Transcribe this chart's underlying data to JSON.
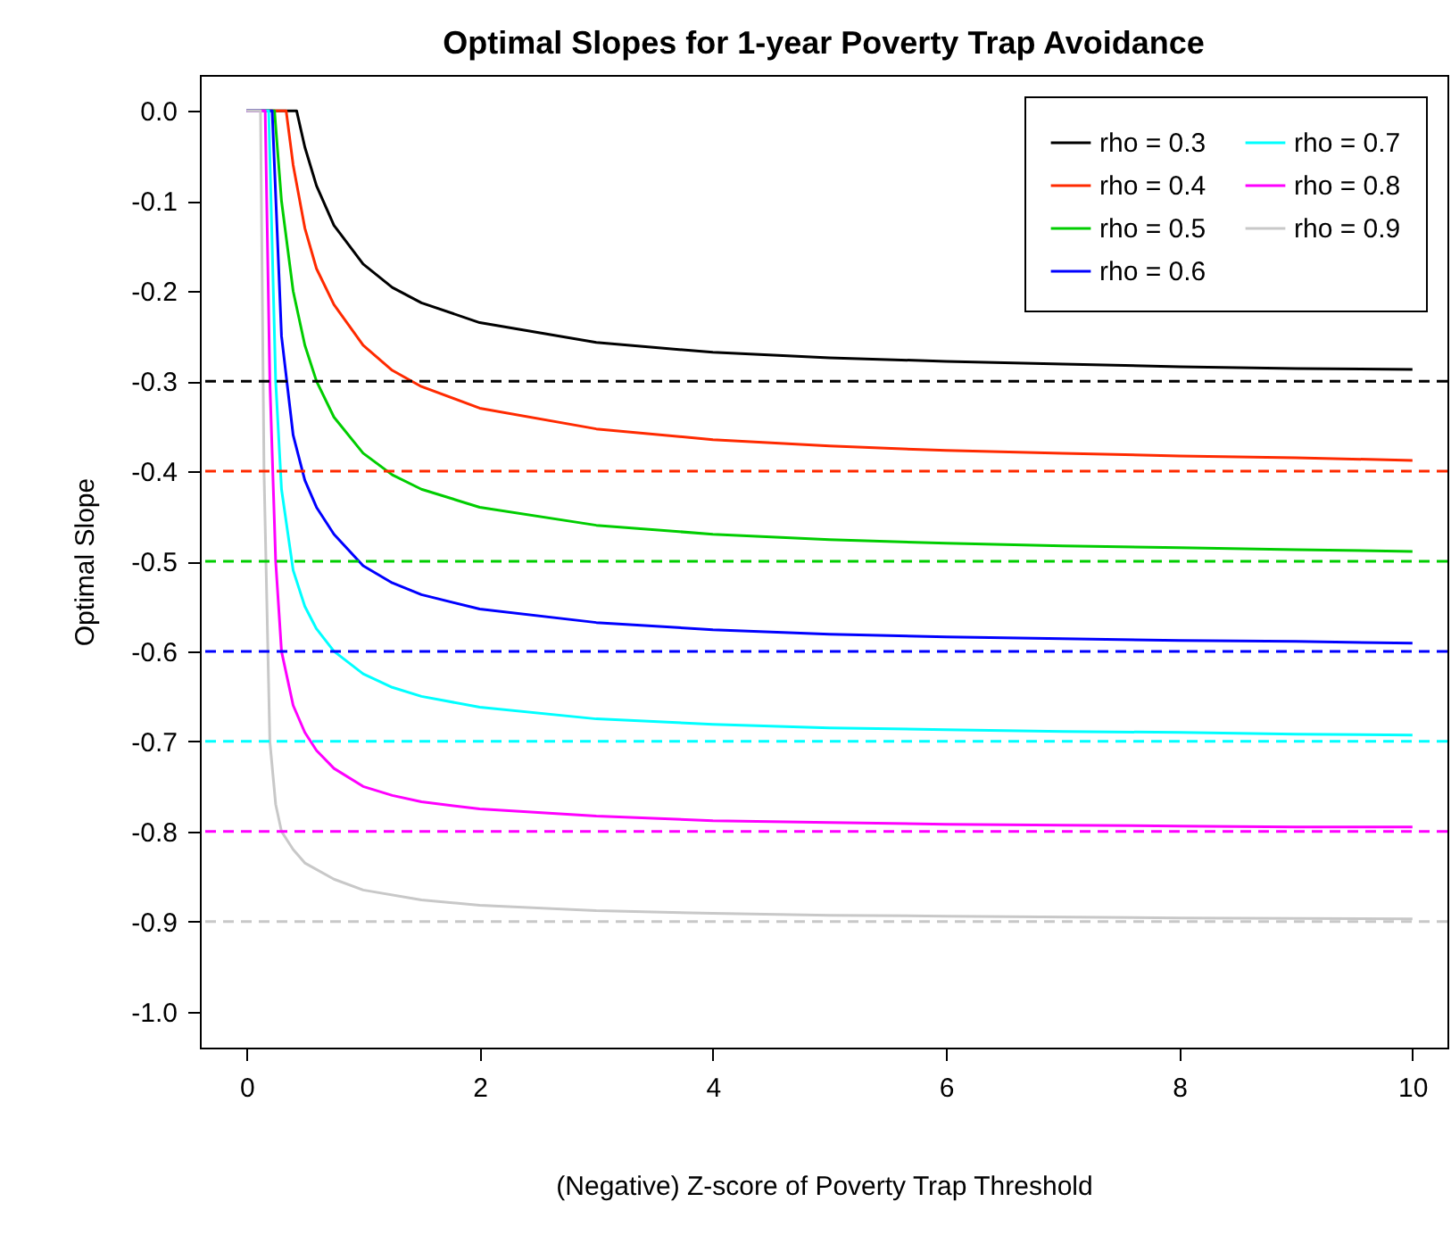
{
  "chart_data": {
    "type": "line",
    "title": "Optimal Slopes for 1-year Poverty Trap Avoidance",
    "xlabel": "(Negative) Z-score of Poverty Trap Threshold",
    "ylabel": "Optimal Slope",
    "xlim": [
      -0.4,
      10.3
    ],
    "xticks": [
      0,
      2,
      4,
      6,
      8,
      10
    ],
    "ylim": [
      -1.04,
      0.04
    ],
    "yticks": [
      {
        "value": 0,
        "label": "0.0"
      },
      {
        "value": -0.1,
        "label": "-0.1"
      },
      {
        "value": -0.2,
        "label": "-0.2"
      },
      {
        "value": -0.3,
        "label": "-0.3"
      },
      {
        "value": -0.4,
        "label": "-0.4"
      },
      {
        "value": -0.5,
        "label": "-0.5"
      },
      {
        "value": -0.6,
        "label": "-0.6"
      },
      {
        "value": -0.7,
        "label": "-0.7"
      },
      {
        "value": -0.8,
        "label": "-0.8"
      },
      {
        "value": -0.9,
        "label": "-0.9"
      },
      {
        "value": -1,
        "label": "-1.0"
      }
    ],
    "grid": false,
    "legend": "top right",
    "marker": "none",
    "line_style": "solid",
    "series": [
      {
        "name": "rho = 0.3",
        "color": "#000000",
        "x": [
          0,
          0.43,
          0.5,
          0.6,
          0.75,
          1,
          1.25,
          1.5,
          2,
          3,
          4,
          5,
          6,
          7,
          8,
          9,
          10
        ],
        "values": [
          0,
          0,
          -0.04,
          -0.083,
          -0.127,
          -0.17,
          -0.196,
          -0.213,
          -0.235,
          -0.257,
          -0.268,
          -0.274,
          -0.278,
          -0.281,
          -0.284,
          -0.286,
          -0.287
        ]
      },
      {
        "name": "rho = 0.4",
        "color": "#ff2a00",
        "x": [
          0,
          0.34,
          0.4,
          0.5,
          0.6,
          0.75,
          1,
          1.25,
          1.5,
          2,
          3,
          4,
          5,
          6,
          7,
          8,
          9,
          10
        ],
        "values": [
          0,
          0,
          -0.06,
          -0.13,
          -0.175,
          -0.215,
          -0.26,
          -0.288,
          -0.306,
          -0.33,
          -0.353,
          -0.365,
          -0.372,
          -0.377,
          -0.38,
          -0.383,
          -0.385,
          -0.388
        ]
      },
      {
        "name": "rho = 0.5",
        "color": "#00cd00",
        "x": [
          0,
          0.24,
          0.3,
          0.4,
          0.5,
          0.6,
          0.75,
          1,
          1.25,
          1.5,
          2,
          3,
          4,
          5,
          6,
          7,
          8,
          9,
          10
        ],
        "values": [
          0,
          0,
          -0.1,
          -0.2,
          -0.26,
          -0.3,
          -0.34,
          -0.38,
          -0.404,
          -0.42,
          -0.44,
          -0.46,
          -0.47,
          -0.476,
          -0.48,
          -0.483,
          -0.485,
          -0.487,
          -0.489
        ]
      },
      {
        "name": "rho = 0.6",
        "color": "#0000ff",
        "x": [
          0,
          0.22,
          0.3,
          0.4,
          0.5,
          0.6,
          0.75,
          1,
          1.25,
          1.5,
          2,
          3,
          4,
          5,
          6,
          7,
          8,
          9,
          10
        ],
        "values": [
          0,
          0,
          -0.25,
          -0.36,
          -0.41,
          -0.44,
          -0.47,
          -0.505,
          -0.524,
          -0.537,
          -0.553,
          -0.568,
          -0.576,
          -0.581,
          -0.584,
          -0.586,
          -0.588,
          -0.589,
          -0.591
        ]
      },
      {
        "name": "rho = 0.7",
        "color": "#00ffff",
        "x": [
          0,
          0.19,
          0.25,
          0.3,
          0.4,
          0.5,
          0.6,
          0.75,
          1,
          1.25,
          1.5,
          2,
          3,
          4,
          5,
          6,
          7,
          8,
          9,
          10
        ],
        "values": [
          0,
          0,
          -0.3,
          -0.42,
          -0.51,
          -0.55,
          -0.575,
          -0.6,
          -0.625,
          -0.64,
          -0.65,
          -0.662,
          -0.675,
          -0.681,
          -0.685,
          -0.687,
          -0.689,
          -0.69,
          -0.692,
          -0.693
        ]
      },
      {
        "name": "rho = 0.8",
        "color": "#ff00ff",
        "x": [
          0,
          0.16,
          0.2,
          0.25,
          0.3,
          0.4,
          0.5,
          0.6,
          0.75,
          1,
          1.25,
          1.5,
          2,
          3,
          4,
          5,
          6,
          7,
          8,
          9,
          10
        ],
        "values": [
          0,
          0,
          -0.3,
          -0.5,
          -0.6,
          -0.66,
          -0.69,
          -0.71,
          -0.73,
          -0.75,
          -0.76,
          -0.767,
          -0.775,
          -0.783,
          -0.788,
          -0.79,
          -0.792,
          -0.793,
          -0.794,
          -0.795,
          -0.795
        ]
      },
      {
        "name": "rho = 0.9",
        "color": "#c8c8c8",
        "x": [
          0,
          0.12,
          0.15,
          0.2,
          0.25,
          0.3,
          0.4,
          0.5,
          0.75,
          1,
          1.5,
          2,
          3,
          4,
          5,
          6,
          8,
          10
        ],
        "values": [
          0,
          0,
          -0.4,
          -0.7,
          -0.77,
          -0.8,
          -0.82,
          -0.835,
          -0.853,
          -0.865,
          -0.876,
          -0.882,
          -0.888,
          -0.891,
          -0.893,
          -0.894,
          -0.896,
          -0.897
        ]
      }
    ],
    "ref_lines": [
      {
        "axis": "y",
        "value": -0.3,
        "color": "#000000",
        "line_style": "dashed"
      },
      {
        "axis": "y",
        "value": -0.4,
        "color": "#ff2a00",
        "line_style": "dashed"
      },
      {
        "axis": "y",
        "value": -0.5,
        "color": "#00cd00",
        "line_style": "dashed"
      },
      {
        "axis": "y",
        "value": -0.6,
        "color": "#0000ff",
        "line_style": "dashed"
      },
      {
        "axis": "y",
        "value": -0.7,
        "color": "#00ffff",
        "line_style": "dashed"
      },
      {
        "axis": "y",
        "value": -0.8,
        "color": "#ff00ff",
        "line_style": "dashed"
      },
      {
        "axis": "y",
        "value": -0.9,
        "color": "#c8c8c8",
        "line_style": "dashed"
      }
    ]
  }
}
